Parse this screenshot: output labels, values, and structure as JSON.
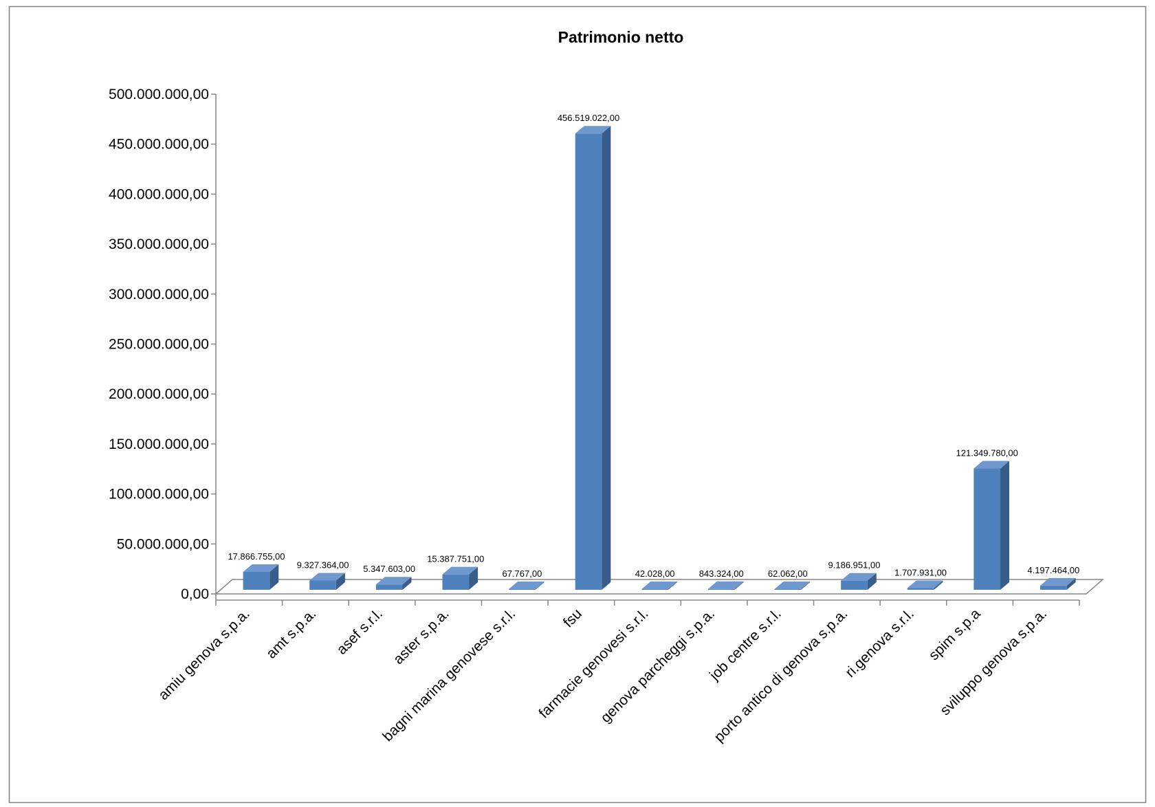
{
  "chart_data": {
    "type": "bar",
    "three_d": true,
    "title": "Patrimonio netto",
    "categories": [
      "amiu genova s.p.a.",
      "amt s.p.a.",
      "asef s.r.l.",
      "aster s.p.a.",
      "bagni marina genovese s.r.l.",
      "fsu",
      "farmacie genovesi s.r.l.",
      "genova parcheggi s.p.a.",
      "job centre s.r.l.",
      "porto antico di genova s.p.a.",
      "ri.genova s.r.l.",
      "spim s.p.a",
      "sviluppo genova s.p.a."
    ],
    "values": [
      17866755,
      9327364,
      5347603,
      15387751,
      67767,
      456519022,
      42028,
      843324,
      62062,
      9186951,
      1707931,
      121349780,
      4197464
    ],
    "data_labels": [
      "17.866.755,00",
      "9.327.364,00",
      "5.347.603,00",
      "15.387.751,00",
      "67.767,00",
      "456.519.022,00",
      "42.028,00",
      "843.324,00",
      "62.062,00",
      "9.186.951,00",
      "1.707.931,00",
      "121.349.780,00",
      "4.197.464,00"
    ],
    "ylim": [
      0,
      500000000
    ],
    "yticks": [
      0,
      50000000,
      100000000,
      150000000,
      200000000,
      250000000,
      300000000,
      350000000,
      400000000,
      450000000,
      500000000
    ],
    "ytick_labels": [
      "0,00",
      "50.000.000,00",
      "100.000.000,00",
      "150.000.000,00",
      "200.000.000,00",
      "250.000.000,00",
      "300.000.000,00",
      "350.000.000,00",
      "400.000.000,00",
      "450.000.000,00",
      "500.000.000,00"
    ],
    "grid": false
  },
  "colors": {
    "bar_front": "#4F81BD",
    "bar_side": "#385D8A",
    "bar_top": "#6F98CE",
    "axis": "#868686",
    "frame": "#808080",
    "background": "#FFFFFF"
  }
}
